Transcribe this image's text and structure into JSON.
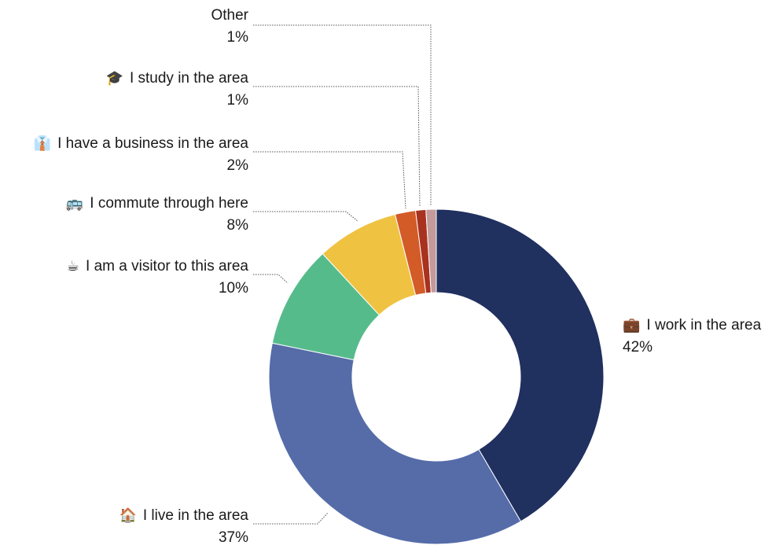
{
  "chart_data": {
    "type": "pie",
    "variant": "donut",
    "slices": [
      {
        "label": "I work in the area",
        "value": 42,
        "pct_label": "42%",
        "color": "#20305f",
        "icon": "briefcase-icon",
        "glyph": "💼"
      },
      {
        "label": "I live in the area",
        "value": 37,
        "pct_label": "37%",
        "color": "#556ca8",
        "icon": "house-icon",
        "glyph": "🏠"
      },
      {
        "label": "I am a visitor to this area",
        "value": 10,
        "pct_label": "10%",
        "color": "#56bb8b",
        "icon": "coffee-cup-icon",
        "glyph": "☕"
      },
      {
        "label": "I commute through here",
        "value": 8,
        "pct_label": "8%",
        "color": "#f0c242",
        "icon": "bus-icon",
        "glyph": "🚌"
      },
      {
        "label": "I have a business in the area",
        "value": 2,
        "pct_label": "2%",
        "color": "#d35b28",
        "icon": "necktie-icon",
        "glyph": "👔"
      },
      {
        "label": "I study in the area",
        "value": 1,
        "pct_label": "1%",
        "color": "#a8321f",
        "icon": "graduation-cap-icon",
        "glyph": "🎓"
      },
      {
        "label": "Other",
        "value": 1,
        "pct_label": "1%",
        "color": "#c49a9a",
        "icon": "",
        "glyph": ""
      }
    ],
    "legend": "none",
    "label_style": "callout leader lines"
  }
}
